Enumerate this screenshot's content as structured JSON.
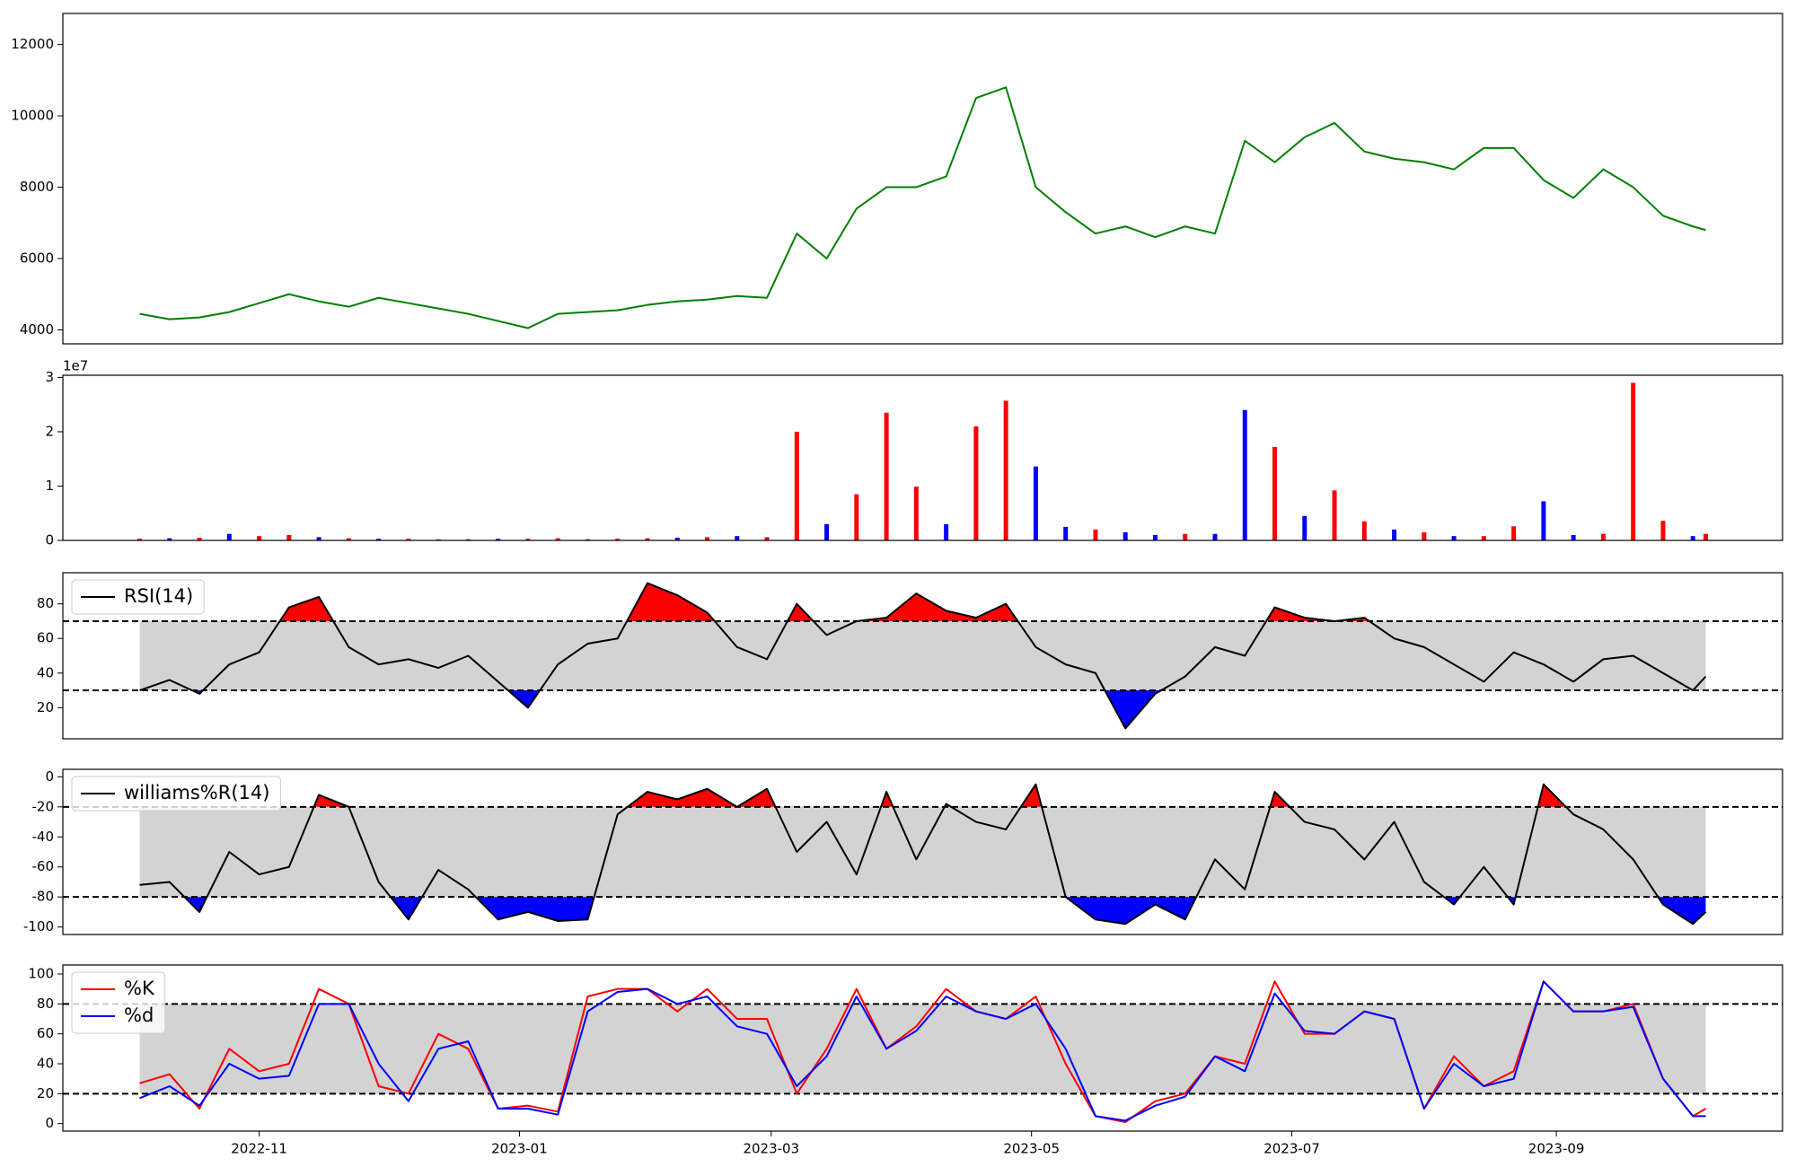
{
  "chart_data": [
    {
      "type": "line",
      "x": [
        3,
        10,
        17,
        24,
        31,
        38,
        45,
        52,
        59,
        66,
        73,
        80,
        87,
        94,
        101,
        108,
        115,
        122,
        129,
        136,
        143,
        150,
        157,
        164,
        171,
        178,
        185,
        192,
        199,
        206,
        213,
        220,
        227,
        234,
        241,
        248,
        255,
        262,
        269,
        276,
        283,
        290,
        297,
        304,
        311,
        318,
        325,
        332,
        339,
        346,
        353,
        360,
        367,
        370
      ],
      "series": [
        {
          "color": "green",
          "values": [
            4450,
            4300,
            4350,
            4500,
            4750,
            5000,
            4800,
            4650,
            4900,
            4750,
            4600,
            4450,
            4250,
            4050,
            4450,
            4500,
            4550,
            4700,
            4800,
            4850,
            4950,
            4900,
            6700,
            6000,
            7400,
            8000,
            8000,
            8300,
            10500,
            10800,
            8000,
            7300,
            6700,
            6900,
            6600,
            6900,
            6700,
            9300,
            8700,
            9400,
            9800,
            9000,
            8800,
            8700,
            8500,
            9100,
            9100,
            8200,
            7700,
            8500,
            8000,
            7200,
            6900,
            6800
          ]
        }
      ],
      "xlim": [
        -15,
        388
      ],
      "ylim": [
        3610,
        12870
      ],
      "yticks": [
        4000,
        6000,
        8000,
        10000,
        12000
      ]
    },
    {
      "type": "bar",
      "x": [
        3,
        10,
        17,
        24,
        31,
        38,
        45,
        52,
        59,
        66,
        73,
        80,
        87,
        94,
        101,
        108,
        115,
        122,
        129,
        136,
        143,
        150,
        157,
        164,
        171,
        178,
        185,
        192,
        199,
        206,
        213,
        220,
        227,
        234,
        241,
        248,
        255,
        262,
        269,
        276,
        283,
        290,
        297,
        304,
        311,
        318,
        325,
        332,
        339,
        346,
        353,
        360,
        367,
        370
      ],
      "series": [
        {
          "values": [
            300000,
            400000,
            500000,
            1200000,
            800000,
            1000000,
            600000,
            400000,
            300000,
            300000,
            200000,
            200000,
            300000,
            300000,
            400000,
            200000,
            300000,
            400000,
            500000,
            600000,
            800000,
            600000,
            20000000,
            3000000,
            8500000,
            23500000,
            9900000,
            3000000,
            21000000,
            25700000,
            13600000,
            2500000,
            2000000,
            1500000,
            1000000,
            1200000,
            1200000,
            24000000,
            17200000,
            4500000,
            9200000,
            3500000,
            2000000,
            1500000,
            800000,
            800000,
            2600000,
            7200000,
            1000000,
            1200000,
            29000000,
            3600000,
            800000,
            1200000
          ],
          "bar_colors": [
            "red",
            "blue",
            "red",
            "blue",
            "red",
            "red",
            "blue",
            "red",
            "blue",
            "red",
            "red",
            "blue",
            "blue",
            "red",
            "red",
            "blue",
            "red",
            "red",
            "blue",
            "red",
            "blue",
            "red",
            "red",
            "blue",
            "red",
            "red",
            "red",
            "blue",
            "red",
            "red",
            "blue",
            "blue",
            "red",
            "blue",
            "blue",
            "red",
            "blue",
            "blue",
            "red",
            "blue",
            "red",
            "red",
            "blue",
            "red",
            "blue",
            "red",
            "red",
            "blue",
            "blue",
            "red",
            "red",
            "red",
            "blue",
            "red"
          ]
        }
      ],
      "xlim": [
        -15,
        388
      ],
      "ylim": [
        0,
        30400000
      ],
      "offset_label": "1e7",
      "yticks": [
        0,
        {
          "value": 10000000,
          "label": "1"
        },
        {
          "value": 20000000,
          "label": "2"
        },
        {
          "value": 30000000,
          "label": "3"
        }
      ]
    },
    {
      "type": "line",
      "x": [
        3,
        10,
        17,
        24,
        31,
        38,
        45,
        52,
        59,
        66,
        73,
        80,
        87,
        94,
        101,
        108,
        115,
        122,
        129,
        136,
        143,
        150,
        157,
        164,
        171,
        178,
        185,
        192,
        199,
        206,
        213,
        220,
        227,
        234,
        241,
        248,
        255,
        262,
        269,
        276,
        283,
        290,
        297,
        304,
        311,
        318,
        325,
        332,
        339,
        346,
        353,
        360,
        367,
        370
      ],
      "series": [
        {
          "name": "RSI(14)",
          "color": "black",
          "values": [
            30,
            36,
            28,
            45,
            52,
            78,
            84,
            55,
            45,
            48,
            43,
            50,
            35,
            20,
            45,
            57,
            60,
            92,
            85,
            75,
            55,
            48,
            80,
            62,
            70,
            72,
            86,
            76,
            72,
            80,
            55,
            45,
            40,
            8,
            28,
            38,
            55,
            50,
            78,
            72,
            70,
            72,
            60,
            55,
            45,
            35,
            52,
            45,
            35,
            48,
            50,
            40,
            30,
            38
          ]
        }
      ],
      "xlim": [
        -15,
        388
      ],
      "ylim": [
        2,
        98
      ],
      "yticks": [
        20,
        40,
        60,
        80
      ],
      "hlines": [
        70,
        30
      ],
      "fill_colors": [
        "red",
        "blue"
      ],
      "legend": "upper left"
    },
    {
      "type": "line",
      "x": [
        3,
        10,
        17,
        24,
        31,
        38,
        45,
        52,
        59,
        66,
        73,
        80,
        87,
        94,
        101,
        108,
        115,
        122,
        129,
        136,
        143,
        150,
        157,
        164,
        171,
        178,
        185,
        192,
        199,
        206,
        213,
        220,
        227,
        234,
        241,
        248,
        255,
        262,
        269,
        276,
        283,
        290,
        297,
        304,
        311,
        318,
        325,
        332,
        339,
        346,
        353,
        360,
        367,
        370
      ],
      "series": [
        {
          "name": "williams%R(14)",
          "color": "black",
          "values": [
            -72,
            -70,
            -90,
            -50,
            -65,
            -60,
            -12,
            -20,
            -70,
            -95,
            -62,
            -75,
            -95,
            -90,
            -96,
            -95,
            -25,
            -10,
            -15,
            -8,
            -20,
            -8,
            -50,
            -30,
            -65,
            -10,
            -55,
            -18,
            -30,
            -35,
            -5,
            -80,
            -95,
            -98,
            -85,
            -95,
            -55,
            -75,
            -10,
            -30,
            -35,
            -55,
            -30,
            -70,
            -85,
            -60,
            -85,
            -5,
            -25,
            -35,
            -55,
            -85,
            -98,
            -90
          ]
        }
      ],
      "xlim": [
        -15,
        388
      ],
      "ylim": [
        -105,
        5
      ],
      "yticks": [
        -100,
        -80,
        -60,
        -40,
        -20,
        0
      ],
      "hlines": [
        -20,
        -80
      ],
      "fill_colors": [
        "red",
        "blue"
      ],
      "legend": "upper left"
    },
    {
      "type": "line",
      "x": [
        3,
        10,
        17,
        24,
        31,
        38,
        45,
        52,
        59,
        66,
        73,
        80,
        87,
        94,
        101,
        108,
        115,
        122,
        129,
        136,
        143,
        150,
        157,
        164,
        171,
        178,
        185,
        192,
        199,
        206,
        213,
        220,
        227,
        234,
        241,
        248,
        255,
        262,
        269,
        276,
        283,
        290,
        297,
        304,
        311,
        318,
        325,
        332,
        339,
        346,
        353,
        360,
        367,
        370
      ],
      "series": [
        {
          "name": "%K",
          "color": "red",
          "values": [
            27,
            33,
            10,
            50,
            35,
            40,
            90,
            80,
            25,
            20,
            60,
            50,
            10,
            12,
            8,
            85,
            90,
            90,
            75,
            90,
            70,
            70,
            20,
            50,
            90,
            50,
            65,
            90,
            75,
            70,
            85,
            40,
            5,
            1,
            15,
            20,
            45,
            40,
            95,
            60,
            60,
            75,
            70,
            10,
            45,
            25,
            35,
            95,
            75,
            75,
            80,
            30,
            5,
            10
          ]
        },
        {
          "name": "%d",
          "color": "blue",
          "values": [
            17,
            25,
            12,
            40,
            30,
            32,
            80,
            80,
            40,
            15,
            50,
            55,
            10,
            10,
            6,
            75,
            88,
            90,
            80,
            85,
            65,
            60,
            25,
            45,
            85,
            50,
            62,
            85,
            75,
            70,
            80,
            50,
            5,
            2,
            12,
            18,
            45,
            35,
            87,
            62,
            60,
            75,
            70,
            10,
            40,
            25,
            30,
            95,
            75,
            75,
            78,
            30,
            5,
            5
          ]
        }
      ],
      "xlim": [
        -15,
        388
      ],
      "ylim": [
        -5,
        106
      ],
      "yticks": [
        0,
        20,
        40,
        60,
        80,
        100
      ],
      "hlines": [
        80,
        20
      ],
      "legend": "upper left",
      "xticks": [
        {
          "value": 31,
          "label": "2022-11"
        },
        {
          "value": 92,
          "label": "2023-01"
        },
        {
          "value": 151,
          "label": "2023-03"
        },
        {
          "value": 212,
          "label": "2023-05"
        },
        {
          "value": 273,
          "label": "2023-07"
        },
        {
          "value": 335,
          "label": "2023-09"
        }
      ]
    }
  ]
}
